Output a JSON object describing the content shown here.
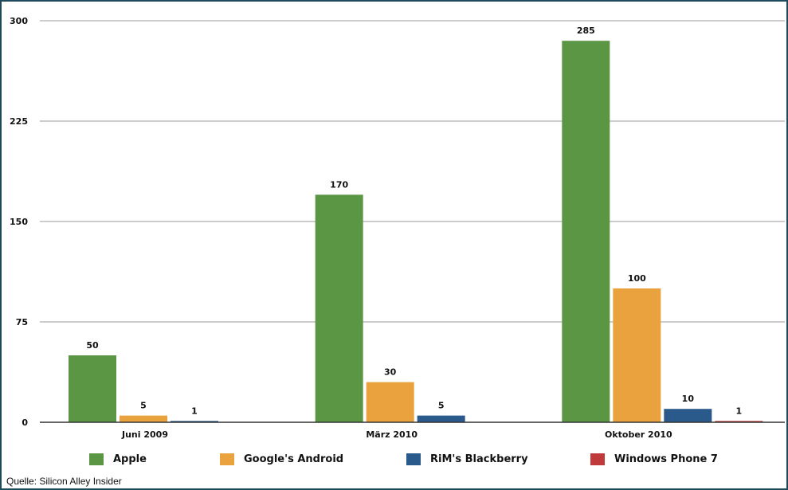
{
  "chart_data": {
    "type": "bar",
    "categories": [
      "Juni 2009",
      "März 2010",
      "Oktober 2010"
    ],
    "series": [
      {
        "name": "Apple",
        "color": "#5a9643",
        "values": [
          50,
          170,
          285
        ]
      },
      {
        "name": "Google's Android",
        "color": "#e9a23d",
        "values": [
          5,
          30,
          100
        ]
      },
      {
        "name": "RiM's Blackberry",
        "color": "#2a5a8c",
        "values": [
          1,
          5,
          10
        ]
      },
      {
        "name": "Windows Phone 7",
        "color": "#c0393b",
        "values": [
          null,
          null,
          1
        ]
      }
    ],
    "y_ticks": [
      0,
      75,
      150,
      225,
      300
    ],
    "ylim": [
      0,
      300
    ],
    "grid": true,
    "legend_position": "bottom",
    "source": "Quelle: Silicon Alley Insider"
  }
}
